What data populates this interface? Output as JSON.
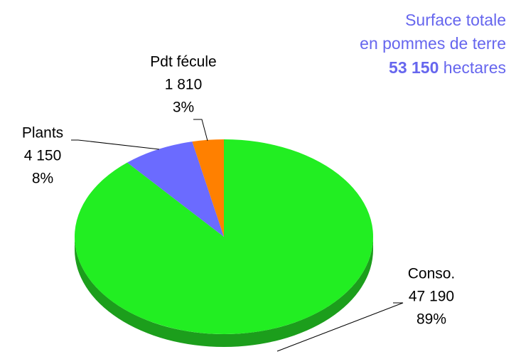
{
  "chart_data": {
    "type": "pie",
    "title": [
      "Surface totale",
      "en pommes de terre"
    ],
    "total_label": "53 150",
    "total_unit": "hectares",
    "categories": [
      "Conso.",
      "Plants",
      "Pdt fécule"
    ],
    "values": [
      47190,
      4150,
      1810
    ],
    "value_labels": [
      "47 190",
      "4 150",
      "1 810"
    ],
    "percent_labels": [
      "89%",
      "8%",
      "3%"
    ],
    "colors": [
      "#22ee22",
      "#6b6bff",
      "#ff8000"
    ],
    "side_colors": [
      "#1c9e1c",
      "#4646b0",
      "#b85a00"
    ]
  }
}
